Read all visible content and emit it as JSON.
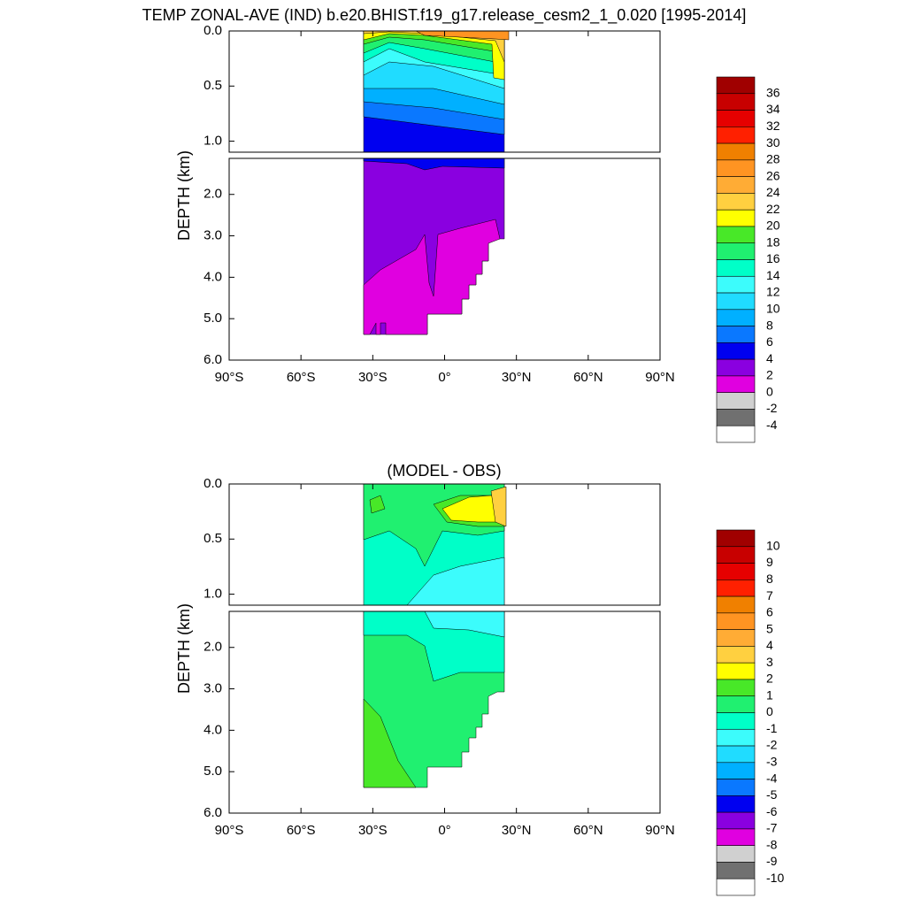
{
  "chart_data": [
    {
      "type": "contour",
      "title": "TEMP ZONAL-AVE (IND) b.e20.BHIST.f19_g17.release_cesm2_1_0.020 [1995-2014]",
      "ylabel": "DEPTH (km)",
      "xlim": [
        -90,
        90
      ],
      "xticks": [
        {
          "value": -90,
          "label": "90°S"
        },
        {
          "value": -60,
          "label": "60°S"
        },
        {
          "value": -30,
          "label": "30°S"
        },
        {
          "value": 0,
          "label": "0°"
        },
        {
          "value": 30,
          "label": "30°N"
        },
        {
          "value": 60,
          "label": "60°N"
        },
        {
          "value": 90,
          "label": "90°N"
        }
      ],
      "ylim": [
        0,
        1.1
      ],
      "yticks": [
        {
          "value": 0,
          "label": "0.0"
        },
        0.5,
        {
          "value": 1,
          "label": "1.0"
        }
      ],
      "ylim_deep": [
        1.13,
        6
      ],
      "yticks_deep": [
        {
          "value": 2,
          "label": "2.0"
        },
        {
          "value": 3,
          "label": "3.0"
        },
        {
          "value": 4,
          "label": "4.0"
        },
        {
          "value": 5,
          "label": "5.0"
        },
        {
          "value": 6,
          "label": "6.0"
        }
      ],
      "levels": [
        36,
        34,
        32,
        30,
        28,
        26,
        24,
        22,
        20,
        18,
        16,
        14,
        12,
        10,
        8,
        6,
        4,
        2,
        0,
        -2,
        -4
      ],
      "colors": [
        "#a00000",
        "#c80000",
        "#e60000",
        "#ff2000",
        "#f08000",
        "#ff9422",
        "#ffac35",
        "#ffd040",
        "#ffff00",
        "#48e828",
        "#20f070",
        "#00ffc8",
        "#3cfcfc",
        "#20dcff",
        "#00b0ff",
        "#0a78ff",
        "#0000f0",
        "#8a00e0",
        "#e000e0",
        "#d0d0d0",
        "#707070",
        "#ffffff"
      ]
    },
    {
      "type": "contour",
      "title": "(MODEL - OBS)",
      "ylabel": "DEPTH (km)",
      "xlim": [
        -90,
        90
      ],
      "xticks": [
        {
          "value": -90,
          "label": "90°S"
        },
        {
          "value": -60,
          "label": "60°S"
        },
        {
          "value": -30,
          "label": "30°S"
        },
        {
          "value": 0,
          "label": "0°"
        },
        {
          "value": 30,
          "label": "30°N"
        },
        {
          "value": 60,
          "label": "60°N"
        },
        {
          "value": 90,
          "label": "90°N"
        }
      ],
      "ylim": [
        0,
        1.1
      ],
      "yticks": [
        {
          "value": 0,
          "label": "0.0"
        },
        0.5,
        {
          "value": 1,
          "label": "1.0"
        }
      ],
      "ylim_deep": [
        1.13,
        6
      ],
      "yticks_deep": [
        {
          "value": 2,
          "label": "2.0"
        },
        {
          "value": 3,
          "label": "3.0"
        },
        {
          "value": 4,
          "label": "4.0"
        },
        {
          "value": 5,
          "label": "5.0"
        },
        {
          "value": 6,
          "label": "6.0"
        }
      ],
      "levels": [
        10,
        9,
        8,
        7,
        6,
        5,
        4,
        3,
        2,
        1,
        0,
        -1,
        -2,
        -3,
        -4,
        -5,
        -6,
        -7,
        -8,
        -9,
        -10
      ],
      "colors": [
        "#a00000",
        "#c80000",
        "#e60000",
        "#ff2000",
        "#f08000",
        "#ff9422",
        "#ffac35",
        "#ffd040",
        "#ffff00",
        "#48e828",
        "#20f070",
        "#00ffc8",
        "#3cfcfc",
        "#20dcff",
        "#00b0ff",
        "#0a78ff",
        "#0000f0",
        "#8a00e0",
        "#e000e0",
        "#d0d0d0",
        "#707070",
        "#ffffff"
      ]
    }
  ]
}
